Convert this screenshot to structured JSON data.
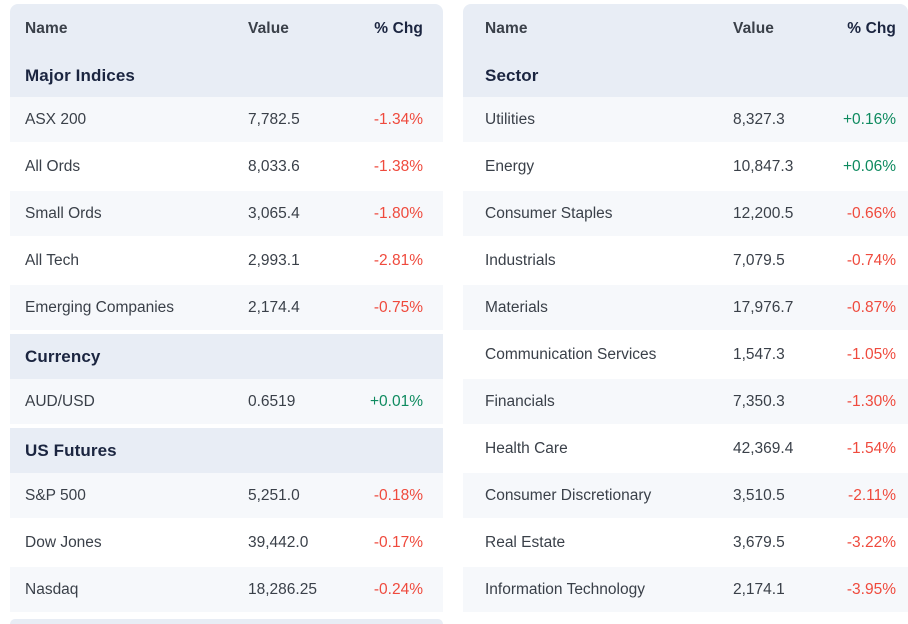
{
  "colors": {
    "header_bg": "#e8edf5",
    "stripe_bg": "#f6f8fb",
    "positive": "#0e8a5f",
    "negative": "#ef4a3d",
    "heading_text": "#1b2540",
    "body_text": "#3a4049"
  },
  "columns": {
    "name": "Name",
    "value": "Value",
    "pct_chg": "% Chg"
  },
  "tables": [
    {
      "id": "indices-table",
      "partial_next_section_visible": true,
      "sections": [
        {
          "title": "Major Indices",
          "rows": [
            {
              "name": "ASX 200",
              "value": "7,782.5",
              "chg": "-1.34%"
            },
            {
              "name": "All Ords",
              "value": "8,033.6",
              "chg": "-1.38%"
            },
            {
              "name": "Small Ords",
              "value": "3,065.4",
              "chg": "-1.80%"
            },
            {
              "name": "All Tech",
              "value": "2,993.1",
              "chg": "-2.81%"
            },
            {
              "name": "Emerging Companies",
              "value": "2,174.4",
              "chg": "-0.75%"
            }
          ]
        },
        {
          "title": "Currency",
          "rows": [
            {
              "name": "AUD/USD",
              "value": "0.6519",
              "chg": "+0.01%"
            }
          ]
        },
        {
          "title": "US Futures",
          "rows": [
            {
              "name": "S&P 500",
              "value": "5,251.0",
              "chg": "-0.18%"
            },
            {
              "name": "Dow Jones",
              "value": "39,442.0",
              "chg": "-0.17%"
            },
            {
              "name": "Nasdaq",
              "value": "18,286.25",
              "chg": "-0.24%"
            }
          ]
        }
      ]
    },
    {
      "id": "sectors-table",
      "partial_next_section_visible": false,
      "sections": [
        {
          "title": "Sector",
          "rows": [
            {
              "name": "Utilities",
              "value": "8,327.3",
              "chg": "+0.16%"
            },
            {
              "name": "Energy",
              "value": "10,847.3",
              "chg": "+0.06%"
            },
            {
              "name": "Consumer Staples",
              "value": "12,200.5",
              "chg": "-0.66%"
            },
            {
              "name": "Industrials",
              "value": "7,079.5",
              "chg": "-0.74%"
            },
            {
              "name": "Materials",
              "value": "17,976.7",
              "chg": "-0.87%"
            },
            {
              "name": "Communication Services",
              "value": "1,547.3",
              "chg": "-1.05%"
            },
            {
              "name": "Financials",
              "value": "7,350.3",
              "chg": "-1.30%"
            },
            {
              "name": "Health Care",
              "value": "42,369.4",
              "chg": "-1.54%"
            },
            {
              "name": "Consumer Discretionary",
              "value": "3,510.5",
              "chg": "-2.11%"
            },
            {
              "name": "Real Estate",
              "value": "3,679.5",
              "chg": "-3.22%"
            },
            {
              "name": "Information Technology",
              "value": "2,174.1",
              "chg": "-3.95%"
            }
          ]
        }
      ]
    }
  ]
}
